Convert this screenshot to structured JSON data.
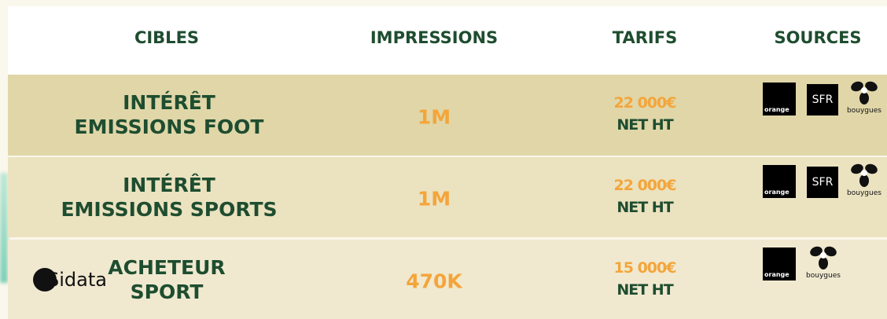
{
  "header": {
    "columns": [
      "CIBLES",
      "IMPRESSIONS",
      "TARIFS",
      "SOURCES"
    ]
  },
  "table": {
    "rows": [
      {
        "target": [
          "INTÉRÊT",
          "EMISSIONS FOOT"
        ],
        "impressions": "1M",
        "price": "22 000€",
        "price_note": "NET HT",
        "sources": [
          "orange",
          "SFR",
          "bouygues"
        ]
      },
      {
        "target": [
          "INTÉRÊT",
          "EMISSIONS SPORTS"
        ],
        "impressions": "1M",
        "price": "22 000€",
        "price_note": "NET HT",
        "sources": [
          "orange",
          "SFR",
          "bouygues"
        ]
      },
      {
        "target": [
          "ACHETEUR",
          "SPORT"
        ],
        "provider": "Sidata",
        "impressions": "470K",
        "price": "15 000€",
        "price_note": "NET HT",
        "sources": [
          "orange",
          "bouygues"
        ]
      }
    ]
  }
}
